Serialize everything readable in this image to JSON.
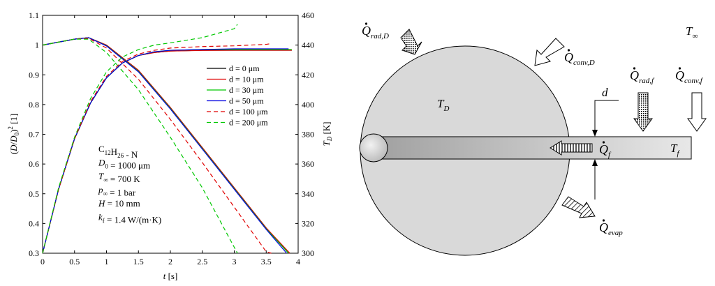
{
  "chart_data": {
    "type": "line",
    "xlabel": "t [s]",
    "ylabel_left": "(D/D0)^2 [1]",
    "ylabel_right": "T_D [K]",
    "xlim": [
      0,
      4
    ],
    "ylim_left": [
      0.3,
      1.1
    ],
    "ylim_right": [
      300,
      460
    ],
    "x_ticks": [
      "0",
      "0.5",
      "1",
      "1.5",
      "2",
      "2.5",
      "3",
      "3.5",
      "4"
    ],
    "y_left_ticks": [
      "0.3",
      "0.4",
      "0.5",
      "0.6",
      "0.7",
      "0.8",
      "0.9",
      "1",
      "1.1"
    ],
    "y_right_ticks": [
      "300",
      "320",
      "340",
      "360",
      "380",
      "400",
      "420",
      "440",
      "460"
    ],
    "grid": false,
    "legend_position": "upper-right",
    "legend_entries": [
      {
        "label": "d = 0  μm",
        "color": "#000000",
        "dash": "solid"
      },
      {
        "label": "d = 10  μm",
        "color": "#e00000",
        "dash": "solid"
      },
      {
        "label": "d = 30  μm",
        "color": "#00c800",
        "dash": "solid"
      },
      {
        "label": "d = 50  μm",
        "color": "#0000e0",
        "dash": "solid"
      },
      {
        "label": "d = 100  μm",
        "color": "#e00000",
        "dash": "dashed"
      },
      {
        "label": "d = 200  μm",
        "color": "#00c800",
        "dash": "dashed"
      }
    ],
    "series_diameter": [
      {
        "color": "#000000",
        "dash": "solid",
        "x": [
          0,
          0.25,
          0.5,
          0.72,
          1.0,
          1.5,
          2.0,
          2.5,
          3.0,
          3.5,
          3.85
        ],
        "y": [
          1.0,
          1.01,
          1.02,
          1.025,
          1.0,
          0.915,
          0.79,
          0.655,
          0.52,
          0.385,
          0.29
        ]
      },
      {
        "color": "#e00000",
        "dash": "solid",
        "x": [
          0,
          0.25,
          0.5,
          0.72,
          1.0,
          1.5,
          2.0,
          2.5,
          3.0,
          3.5,
          3.87
        ],
        "y": [
          1.0,
          1.01,
          1.02,
          1.025,
          1.0,
          0.915,
          0.79,
          0.655,
          0.52,
          0.385,
          0.29
        ]
      },
      {
        "color": "#00c800",
        "dash": "solid",
        "x": [
          0,
          0.25,
          0.5,
          0.72,
          1.0,
          1.5,
          2.0,
          2.5,
          3.0,
          3.5,
          3.85
        ],
        "y": [
          1.0,
          1.01,
          1.02,
          1.025,
          0.998,
          0.912,
          0.787,
          0.652,
          0.517,
          0.382,
          0.29
        ]
      },
      {
        "color": "#0000e0",
        "dash": "solid",
        "x": [
          0,
          0.25,
          0.5,
          0.72,
          1.0,
          1.5,
          2.0,
          2.5,
          3.0,
          3.5,
          3.82
        ],
        "y": [
          1.0,
          1.01,
          1.02,
          1.025,
          0.997,
          0.91,
          0.785,
          0.65,
          0.515,
          0.38,
          0.29
        ]
      },
      {
        "color": "#e00000",
        "dash": "dashed",
        "x": [
          0,
          0.25,
          0.5,
          0.72,
          1.0,
          1.5,
          2.0,
          2.5,
          3.0,
          3.5,
          3.58
        ],
        "y": [
          1.0,
          1.01,
          1.02,
          1.023,
          0.99,
          0.885,
          0.75,
          0.605,
          0.455,
          0.305,
          0.28
        ]
      },
      {
        "color": "#00c800",
        "dash": "dashed",
        "x": [
          0,
          0.25,
          0.5,
          0.72,
          1.0,
          1.5,
          2.0,
          2.5,
          3.0,
          3.05
        ],
        "y": [
          1.0,
          1.01,
          1.02,
          1.02,
          0.975,
          0.85,
          0.69,
          0.52,
          0.32,
          0.29
        ]
      }
    ],
    "series_temperature": [
      {
        "color": "#000000",
        "dash": "solid",
        "x": [
          0,
          0.25,
          0.5,
          0.75,
          1.0,
          1.25,
          1.5,
          1.75,
          2.0,
          2.5,
          3.0,
          3.5,
          3.9
        ],
        "y": [
          300,
          343,
          377,
          401,
          418,
          428,
          433,
          435,
          436,
          436.5,
          436.5,
          436.5,
          436.5
        ]
      },
      {
        "color": "#e00000",
        "dash": "solid",
        "x": [
          0,
          0.25,
          0.5,
          0.75,
          1.0,
          1.25,
          1.5,
          1.75,
          2.0,
          2.5,
          3.0,
          3.5,
          3.9
        ],
        "y": [
          300,
          343,
          377,
          401,
          418,
          428,
          433,
          435,
          436,
          436.4,
          436.5,
          436.5,
          436.5
        ]
      },
      {
        "color": "#00c800",
        "dash": "solid",
        "x": [
          0,
          0.25,
          0.5,
          0.75,
          1.0,
          1.25,
          1.5,
          1.75,
          2.0,
          2.5,
          3.0,
          3.5,
          3.9
        ],
        "y": [
          300,
          343,
          377,
          401,
          418,
          428,
          433,
          435.5,
          436.5,
          437,
          437,
          437,
          437
        ]
      },
      {
        "color": "#0000e0",
        "dash": "solid",
        "x": [
          0,
          0.25,
          0.5,
          0.75,
          1.0,
          1.25,
          1.5,
          1.75,
          2.0,
          2.5,
          3.0,
          3.5,
          3.85
        ],
        "y": [
          300,
          343,
          377,
          401,
          418,
          428,
          433,
          435.5,
          436.5,
          437,
          437.5,
          437.5,
          437.5
        ]
      },
      {
        "color": "#e00000",
        "dash": "dashed",
        "x": [
          0,
          0.25,
          0.5,
          0.75,
          1.0,
          1.25,
          1.5,
          1.75,
          2.0,
          2.5,
          3.0,
          3.5,
          3.58
        ],
        "y": [
          300,
          343,
          377,
          402,
          419,
          429,
          434,
          436.5,
          438,
          439,
          439.5,
          440.5,
          441
        ]
      },
      {
        "color": "#00c800",
        "dash": "dashed",
        "x": [
          0,
          0.25,
          0.5,
          0.75,
          1.0,
          1.25,
          1.5,
          1.75,
          2.0,
          2.5,
          3.0,
          3.05
        ],
        "y": [
          300,
          344,
          378,
          404,
          422,
          432,
          437,
          440,
          441.5,
          445,
          451,
          454
        ]
      }
    ],
    "annotation_lines": [
      {
        "main": "C",
        "sub": "12",
        "main2": "H",
        "sub2": "26",
        "tail": " - N"
      },
      {
        "main": "D",
        "sub": "0",
        "tail": " = 1000 μm"
      },
      {
        "main": "T",
        "sub": "∞",
        "tail": " = 700 K"
      },
      {
        "main": "p",
        "sub": "∞",
        "tail": " = 1 bar"
      },
      {
        "main": "H",
        "sub": "",
        "tail": " = 10 mm"
      },
      {
        "main": "k",
        "sub": "f",
        "tail": " = 1.4 W/(m·K)"
      }
    ]
  },
  "diagram": {
    "labels": {
      "q_rad_d": {
        "main": "Q",
        "sub": "rad,D"
      },
      "q_conv_d": {
        "main": "Q",
        "sub": "conv,D"
      },
      "q_rad_f": {
        "main": "Q",
        "sub": "rad,f"
      },
      "q_conv_f": {
        "main": "Q",
        "sub": "conv,f"
      },
      "q_f": {
        "main": "Q",
        "sub": "f"
      },
      "q_evap": {
        "main": "Q",
        "sub": "evap"
      },
      "t_inf": {
        "main": "T",
        "sub": "∞"
      },
      "t_d": {
        "main": "T",
        "sub": "D"
      },
      "t_f": {
        "main": "T",
        "sub": "f"
      },
      "d": {
        "main": "d",
        "sub": ""
      }
    },
    "colors": {
      "droplet": "#d9d9d9",
      "fiber_dark": "#9e9e9e",
      "fiber_light": "#e6e6e6"
    }
  }
}
